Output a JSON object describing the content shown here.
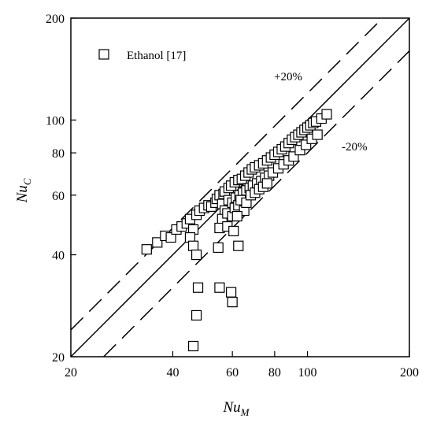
{
  "chart_data": {
    "type": "scatter",
    "x_scale": "log",
    "y_scale": "log",
    "xlim": [
      20,
      200
    ],
    "ylim": [
      20,
      200
    ],
    "x_ticks": [
      20,
      40,
      60,
      80,
      100,
      200
    ],
    "y_ticks": [
      20,
      40,
      60,
      80,
      100,
      200
    ],
    "x_tick_labels": [
      "20",
      "40",
      "60",
      "80",
      "100",
      "200"
    ],
    "y_tick_labels": [
      "20",
      "40",
      "60",
      "80",
      "100",
      "200"
    ],
    "xlabel": {
      "main": "Nu",
      "sub": "M"
    },
    "ylabel": {
      "main": "Nu",
      "sub": "C"
    },
    "grid": false,
    "legend_placement": "top-left",
    "marker": "open-square",
    "series": [
      {
        "name": "Ethanol [17]",
        "points": [
          [
            33.5,
            41.5
          ],
          [
            36,
            43.5
          ],
          [
            38,
            45.5
          ],
          [
            39.5,
            45
          ],
          [
            41,
            47.5
          ],
          [
            42.5,
            48.5
          ],
          [
            44,
            49.5
          ],
          [
            45,
            51
          ],
          [
            46,
            47.5
          ],
          [
            47,
            52.5
          ],
          [
            48,
            54
          ],
          [
            49.5,
            55
          ],
          [
            51,
            56
          ],
          [
            52,
            55.5
          ],
          [
            53.5,
            57
          ],
          [
            54,
            58.5
          ],
          [
            55,
            60
          ],
          [
            56.5,
            60.5
          ],
          [
            57,
            61.5
          ],
          [
            58.5,
            63
          ],
          [
            59.5,
            64
          ],
          [
            61,
            65.5
          ],
          [
            62.5,
            66.5
          ],
          [
            64,
            67
          ],
          [
            65.5,
            68.5
          ],
          [
            67,
            70
          ],
          [
            68.5,
            71.5
          ],
          [
            70,
            72.5
          ],
          [
            72,
            73.5
          ],
          [
            74,
            74.5
          ],
          [
            76,
            76
          ],
          [
            78,
            77.5
          ],
          [
            80,
            79
          ],
          [
            82,
            80.5
          ],
          [
            84,
            82
          ],
          [
            86,
            83.5
          ],
          [
            88,
            85.5
          ],
          [
            90,
            87.5
          ],
          [
            92,
            89
          ],
          [
            94,
            90.5
          ],
          [
            96,
            92
          ],
          [
            98,
            93.5
          ],
          [
            100,
            95
          ],
          [
            102,
            96.5
          ],
          [
            104,
            98
          ],
          [
            106,
            99
          ],
          [
            110,
            101
          ],
          [
            114,
            104
          ],
          [
            56,
            56.5
          ],
          [
            57,
            54
          ],
          [
            58.5,
            58
          ],
          [
            60,
            57
          ],
          [
            61.5,
            59
          ],
          [
            63,
            60
          ],
          [
            64.5,
            61
          ],
          [
            66,
            62
          ],
          [
            67.5,
            63
          ],
          [
            69,
            64
          ],
          [
            71,
            65
          ],
          [
            73,
            66
          ],
          [
            75,
            67.5
          ],
          [
            77,
            68.5
          ],
          [
            79,
            70
          ],
          [
            82,
            72
          ],
          [
            85,
            74
          ],
          [
            88,
            76
          ],
          [
            91,
            78
          ],
          [
            95,
            81.5
          ],
          [
            99,
            84.5
          ],
          [
            103,
            88
          ],
          [
            107,
            90.5
          ],
          [
            56,
            51
          ],
          [
            58,
            53
          ],
          [
            60,
            52
          ],
          [
            61,
            55
          ],
          [
            62.5,
            56
          ],
          [
            63.5,
            58
          ],
          [
            65,
            54
          ],
          [
            66,
            57
          ],
          [
            68,
            60
          ],
          [
            70,
            61
          ],
          [
            72,
            62.5
          ],
          [
            74,
            63.5
          ],
          [
            76,
            65
          ],
          [
            55,
            48
          ],
          [
            58,
            48.5
          ],
          [
            60.5,
            47
          ],
          [
            62,
            52
          ],
          [
            45,
            45
          ],
          [
            46,
            42.5
          ],
          [
            47,
            40
          ],
          [
            54.5,
            42
          ],
          [
            62.5,
            42.5
          ],
          [
            47.5,
            32
          ],
          [
            55,
            32
          ],
          [
            59.5,
            31
          ],
          [
            60,
            29
          ],
          [
            47,
            26.5
          ],
          [
            46,
            21.5
          ]
        ]
      }
    ],
    "reference_lines": [
      {
        "label": "",
        "factor": 1.0,
        "style": "solid"
      },
      {
        "label": "+20%",
        "factor": 1.2,
        "style": "dashed"
      },
      {
        "label": "-20%",
        "factor": 0.8,
        "style": "dashed"
      }
    ]
  }
}
